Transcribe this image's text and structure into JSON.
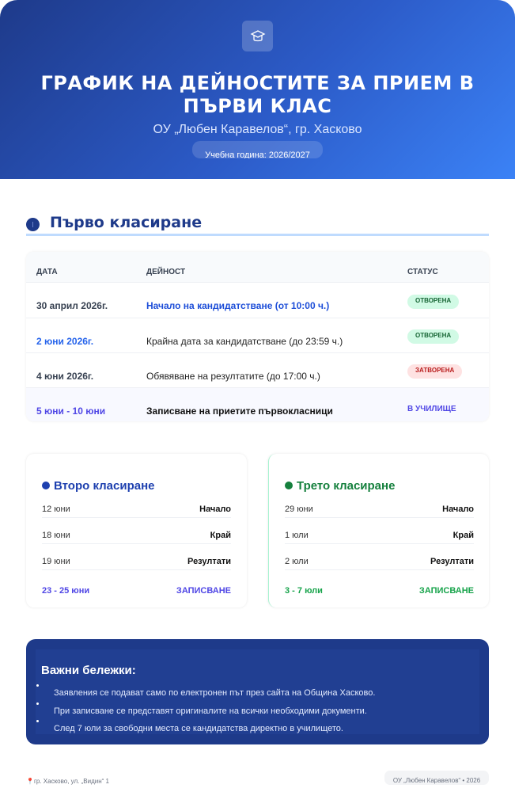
{
  "header": {
    "icon": "graduation-cap-icon",
    "title": "ГРАФИК НА ДЕЙНОСТИТЕ ЗА ПРИЕМ В ПЪРВИ КЛАС",
    "subtitle": "ОУ „Любен Каравелов“, гр. Хасково",
    "school_year": "Учебна година: 2026/2027"
  },
  "first": {
    "title": "Първо класиране",
    "columns": [
      "ДАТА",
      "ДЕЙНОСТ",
      "СТАТУС"
    ],
    "rows": [
      {
        "date": "30 април 2026г.",
        "activity": "Начало на кандидатстване (от 10:00 ч.)",
        "status": "ОТВОРЕНА"
      },
      {
        "date": "2 юни 2026г.",
        "activity": "Крайна дата за кандидатстване (до 23:59 ч.)",
        "status": "ОТВОРЕНА"
      },
      {
        "date": "4 юни 2026г.",
        "activity": "Обявяване на резултатите (до 17:00 ч.)",
        "status": "ЗАТВОРЕНА"
      },
      {
        "date": "5 юни - 10 юни",
        "activity": "Записване на приетите първокласници",
        "status": "В УЧИЛИЩЕ"
      }
    ]
  },
  "second": {
    "title": "Второ класиране",
    "color": "#1e40af",
    "items": [
      {
        "date": "12 юни",
        "label": "Начало"
      },
      {
        "date": "18 юни",
        "label": "Край"
      },
      {
        "date": "19 юни",
        "label": "Резултати"
      }
    ],
    "enroll_date": "23 - 25 юни",
    "enroll_label": "ЗАПИСВАНЕ"
  },
  "third": {
    "title": "Трето класиране",
    "color": "#15803d",
    "items": [
      {
        "date": "29 юни",
        "label": "Начало"
      },
      {
        "date": "1 юли",
        "label": "Край"
      },
      {
        "date": "2 юли",
        "label": "Резултати"
      }
    ],
    "enroll_date": "3 - 7 юли",
    "enroll_label": "ЗАПИСВАНЕ"
  },
  "notes": {
    "title": "Важни бележки:",
    "items": [
      "Заявления се подават само по електронен път през сайта на Община Хасково.",
      "При записване се представят оригиналите на всички необходими документи.",
      "След 7 юли за свободни места се кандидатства директно в училището."
    ]
  },
  "footer": {
    "address": "гр. Хасково, ул. „Видин“ 1",
    "address_icon": "pin-icon",
    "copyright": "ОУ „Любен Каравелов“ • 2026"
  }
}
